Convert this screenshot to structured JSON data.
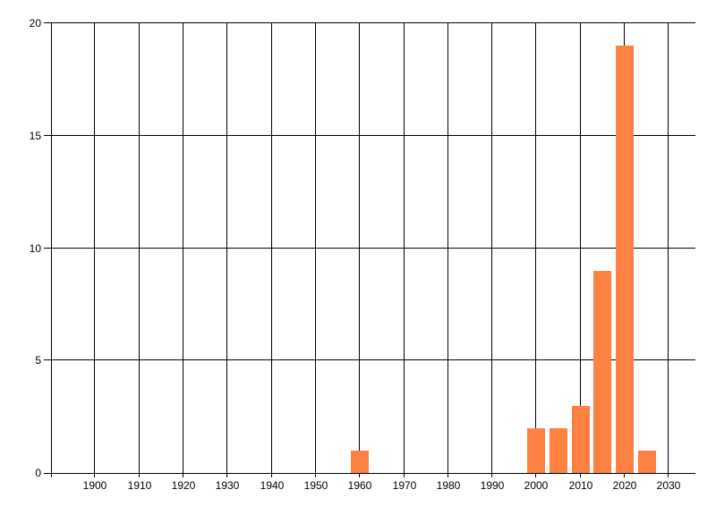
{
  "figure": {
    "background_color": "#ffffff",
    "grid_color": "#000000",
    "text_color": "#000000"
  },
  "chart_data": {
    "type": "bar",
    "title": "",
    "xlabel": "",
    "ylabel": "",
    "x": [
      1960,
      2000,
      2005,
      2010,
      2015,
      2020,
      2025
    ],
    "values": [
      1,
      2,
      2,
      3,
      9,
      19,
      1
    ],
    "bar_color": "#fc8142",
    "bar_width_years": 4.1,
    "xlim": [
      1890,
      2036
    ],
    "ylim": [
      0,
      20
    ],
    "x_gridlines": [
      1890,
      1900,
      1910,
      1920,
      1930,
      1940,
      1950,
      1960,
      1970,
      1980,
      1990,
      2000,
      2010,
      2020,
      2030
    ],
    "x_ticks": [
      1900,
      1910,
      1920,
      1930,
      1940,
      1950,
      1960,
      1970,
      1980,
      1990,
      2000,
      2010,
      2020,
      2030
    ],
    "y_ticks": [
      0,
      5,
      10,
      15,
      20
    ],
    "grid": true,
    "legend": "none"
  }
}
